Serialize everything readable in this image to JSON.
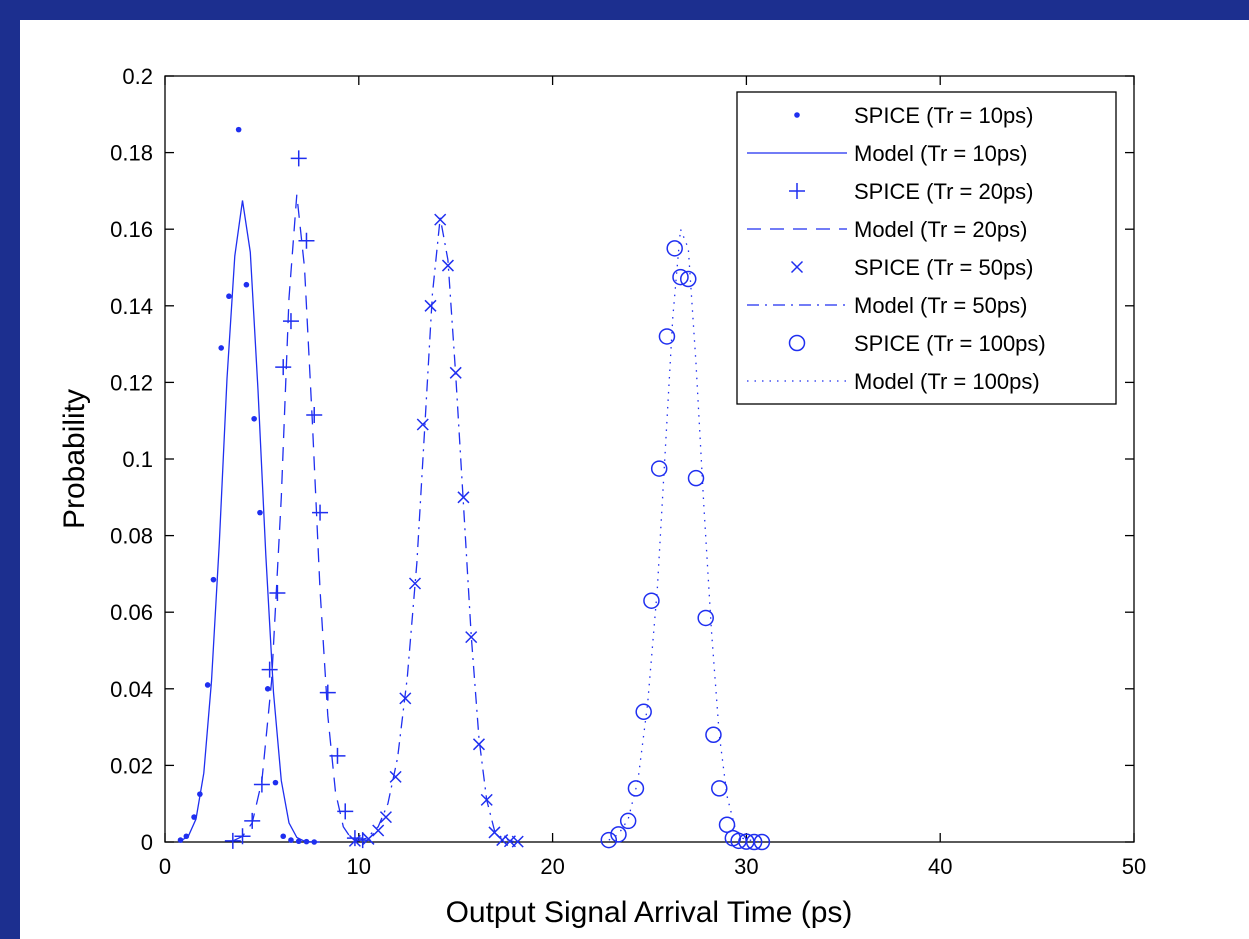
{
  "colors": {
    "frame": "#1c2f8f",
    "series": "#1f2ff0",
    "axes": "#000000"
  },
  "chart_data": {
    "type": "line",
    "title": "",
    "xlabel": "Output Signal Arrival Time (ps)",
    "ylabel": "Probability",
    "xlim": [
      0,
      50
    ],
    "ylim": [
      0,
      0.2
    ],
    "xticks": [
      0,
      10,
      20,
      30,
      40,
      50
    ],
    "xtick_labels": [
      "0",
      "10",
      "20",
      "30",
      "40",
      "50"
    ],
    "yticks": [
      0,
      0.02,
      0.04,
      0.06,
      0.08,
      0.1,
      0.12,
      0.14,
      0.16,
      0.18,
      0.2
    ],
    "ytick_labels": [
      "0",
      "0.02",
      "0.04",
      "0.06",
      "0.08",
      "0.1",
      "0.12",
      "0.14",
      "0.16",
      "0.18",
      "0.2"
    ],
    "grid": false,
    "legend_position": "top-right",
    "series": [
      {
        "name": "SPICE (Tr = 10ps)",
        "marker": "dot",
        "line": "none",
        "x": [
          0.8,
          1.1,
          1.5,
          1.8,
          2.2,
          2.5,
          2.9,
          3.3,
          3.8,
          4.2,
          4.6,
          4.9,
          5.3,
          5.7,
          6.1,
          6.5,
          6.9,
          7.3,
          7.7
        ],
        "y": [
          0.0005,
          0.0015,
          0.0065,
          0.0125,
          0.041,
          0.0685,
          0.129,
          0.1425,
          0.186,
          0.1455,
          0.1105,
          0.086,
          0.04,
          0.0155,
          0.0015,
          0.0005,
          0.0002,
          0.0001,
          0.0
        ]
      },
      {
        "name": "Model  (Tr = 10ps)",
        "marker": "none",
        "line": "solid",
        "x": [
          0.8,
          1.2,
          1.6,
          2.0,
          2.4,
          2.8,
          3.2,
          3.6,
          4.0,
          4.4,
          4.8,
          5.2,
          5.6,
          6.0,
          6.4,
          6.8,
          7.2,
          7.6,
          8.0
        ],
        "y": [
          0.0003,
          0.0015,
          0.006,
          0.018,
          0.042,
          0.078,
          0.121,
          0.153,
          0.1675,
          0.154,
          0.118,
          0.075,
          0.039,
          0.016,
          0.005,
          0.0012,
          0.0002,
          0.0,
          0.0
        ]
      },
      {
        "name": "SPICE (Tr = 20ps)",
        "marker": "plus",
        "line": "none",
        "x": [
          3.5,
          4.0,
          4.5,
          5.0,
          5.4,
          5.8,
          6.1,
          6.5,
          6.9,
          7.3,
          7.7,
          8.0,
          8.4,
          8.9,
          9.3,
          9.8,
          10.2
        ],
        "y": [
          0.0003,
          0.0015,
          0.0055,
          0.015,
          0.045,
          0.065,
          0.124,
          0.136,
          0.1785,
          0.157,
          0.1115,
          0.086,
          0.039,
          0.0225,
          0.008,
          0.001,
          0.0005
        ]
      },
      {
        "name": "Model  (Tr = 20ps)",
        "marker": "none",
        "line": "dashed",
        "x": [
          3.5,
          4.0,
          4.5,
          5.0,
          5.5,
          6.0,
          6.4,
          6.8,
          7.2,
          7.6,
          8.0,
          8.4,
          8.8,
          9.2,
          9.6,
          10.0
        ],
        "y": [
          0.0003,
          0.0015,
          0.005,
          0.016,
          0.042,
          0.09,
          0.142,
          0.169,
          0.15,
          0.11,
          0.066,
          0.033,
          0.013,
          0.004,
          0.001,
          0.0002
        ]
      },
      {
        "name": "SPICE (Tr = 50ps)",
        "marker": "x",
        "line": "none",
        "x": [
          9.8,
          10.5,
          11.0,
          11.4,
          11.9,
          12.4,
          12.9,
          13.3,
          13.7,
          14.2,
          14.6,
          15.0,
          15.4,
          15.8,
          16.2,
          16.6,
          17.0,
          17.4,
          17.8,
          18.2
        ],
        "y": [
          0.0003,
          0.0008,
          0.003,
          0.0065,
          0.017,
          0.0375,
          0.0675,
          0.109,
          0.14,
          0.1625,
          0.1505,
          0.1225,
          0.09,
          0.0535,
          0.0255,
          0.011,
          0.0025,
          0.0005,
          0.0002,
          0.0001
        ]
      },
      {
        "name": "Model  (Tr = 50ps)",
        "marker": "none",
        "line": "dashdot",
        "x": [
          9.8,
          10.4,
          11.0,
          11.5,
          12.0,
          12.5,
          13.0,
          13.4,
          13.8,
          14.2,
          14.6,
          15.0,
          15.4,
          15.8,
          16.2,
          16.6,
          17.0,
          17.4,
          18.0
        ],
        "y": [
          0.0002,
          0.001,
          0.004,
          0.01,
          0.022,
          0.043,
          0.073,
          0.108,
          0.143,
          0.163,
          0.152,
          0.122,
          0.088,
          0.054,
          0.027,
          0.011,
          0.003,
          0.001,
          0.0001
        ]
      },
      {
        "name": "SPICE (Tr = 100ps)",
        "marker": "circle",
        "line": "none",
        "x": [
          22.9,
          23.4,
          23.9,
          24.3,
          24.7,
          25.1,
          25.5,
          25.9,
          26.3,
          26.6,
          27.0,
          27.4,
          27.9,
          28.3,
          28.6,
          29.0,
          29.3,
          29.6,
          30.0,
          30.4,
          30.8
        ],
        "y": [
          0.0005,
          0.002,
          0.0055,
          0.014,
          0.034,
          0.063,
          0.0975,
          0.132,
          0.155,
          0.1475,
          0.147,
          0.095,
          0.0585,
          0.028,
          0.014,
          0.0045,
          0.001,
          0.0003,
          0.0001,
          0.0,
          0.0
        ]
      },
      {
        "name": "Model  (Tr = 100ps)",
        "marker": "none",
        "line": "dotted",
        "x": [
          22.9,
          23.4,
          23.9,
          24.4,
          24.9,
          25.4,
          25.8,
          26.2,
          26.6,
          27.0,
          27.4,
          27.8,
          28.2,
          28.6,
          29.0,
          29.4,
          29.8,
          30.4,
          30.8
        ],
        "y": [
          0.0005,
          0.002,
          0.006,
          0.016,
          0.036,
          0.066,
          0.101,
          0.137,
          0.16,
          0.155,
          0.125,
          0.088,
          0.055,
          0.028,
          0.012,
          0.004,
          0.001,
          0.0002,
          0.0
        ]
      }
    ]
  }
}
